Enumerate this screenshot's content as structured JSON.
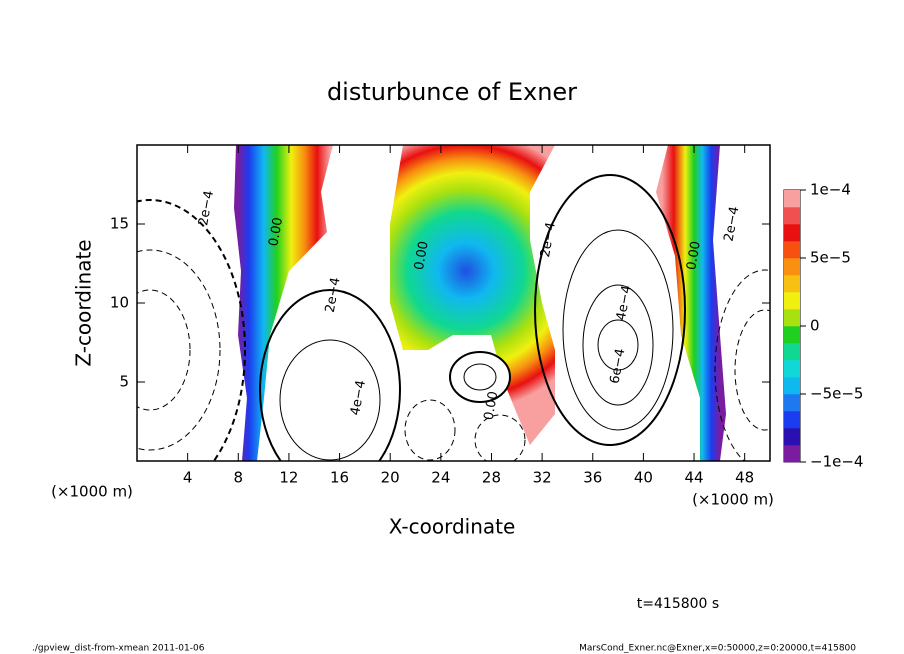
{
  "chart_data": {
    "type": "contour",
    "title": "disturbunce of Exner",
    "xlabel": "X-coordinate",
    "ylabel": "Z-coordinate",
    "x_unit": "(×1000 m)",
    "xlim": [
      0,
      50
    ],
    "ylim": [
      0,
      20
    ],
    "xticks": [
      4,
      8,
      12,
      16,
      20,
      24,
      28,
      32,
      36,
      40,
      44,
      48
    ],
    "yticks": [
      5,
      10,
      15
    ],
    "clim": [
      -0.0001,
      0.0001
    ],
    "cticks": [
      {
        "value": -0.0001,
        "label": "−1e−4"
      },
      {
        "value": -5e-05,
        "label": "−5e−5"
      },
      0,
      {
        "value": 5e-05,
        "label": "5e−5"
      },
      {
        "value": 0.0001,
        "label": "1e−4"
      }
    ],
    "colormap": [
      "#7a1ca0",
      "#2a10b0",
      "#1c3cf0",
      "#1e78f0",
      "#10b8f0",
      "#10d8d8",
      "#10d890",
      "#20d020",
      "#a8e010",
      "#f0f010",
      "#f8c010",
      "#f89010",
      "#f85010",
      "#e81010",
      "#f05050",
      "#f8a0a0"
    ],
    "contour_labels": [
      {
        "text": "2e−4",
        "x": 5.5,
        "z": 16
      },
      {
        "text": "0.00",
        "x": 11,
        "z": 14.5
      },
      {
        "text": "2e−4",
        "x": 15.5,
        "z": 10.5
      },
      {
        "text": "4e−4",
        "x": 17.5,
        "z": 4
      },
      {
        "text": "0.00",
        "x": 22.5,
        "z": 13
      },
      {
        "text": "2e−4",
        "x": 32.5,
        "z": 14
      },
      {
        "text": "4e−4",
        "x": 38.5,
        "z": 10
      },
      {
        "text": "6e−4",
        "x": 38,
        "z": 6
      },
      {
        "text": "0.00",
        "x": 44,
        "z": 13
      },
      {
        "text": "2e−4",
        "x": 47,
        "z": 15
      },
      {
        "text": "0.00",
        "x": 28,
        "z": 3.5
      }
    ],
    "time_label": "t=415800 s",
    "footer_left": "./gpview_dist-from-xmean  2011-01-06",
    "footer_right": "MarsCond_Exner.nc@Exner,x=0:50000,z=0:20000,t=415800"
  }
}
